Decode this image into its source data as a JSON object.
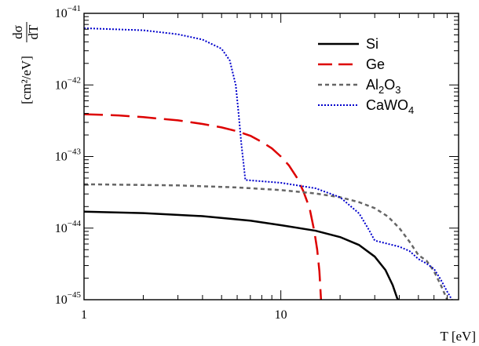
{
  "chart_data": {
    "type": "line",
    "title": "",
    "xlabel": "T [eV]",
    "ylabel": "dσ/dT [cm²/eV]",
    "ylabel_parts": {
      "num": "dσ",
      "den": "dT",
      "unit": "[cm²/eV]"
    },
    "x_scale": "log",
    "y_scale": "log",
    "xlim": [
      1,
      80
    ],
    "ylim": [
      1e-45,
      1e-41
    ],
    "x_tick_labels": [
      {
        "value": 1,
        "label": "1"
      },
      {
        "value": 10,
        "label": "10"
      }
    ],
    "y_tick_labels": [
      {
        "value": 1e-45,
        "base": "10",
        "exp": "−45"
      },
      {
        "value": 1e-44,
        "base": "10",
        "exp": "−44"
      },
      {
        "value": 1e-43,
        "base": "10",
        "exp": "−43"
      },
      {
        "value": 1e-42,
        "base": "10",
        "exp": "−42"
      },
      {
        "value": 1e-41,
        "base": "10",
        "exp": "−41"
      }
    ],
    "grid": false,
    "legend_placement": "top-right",
    "series": [
      {
        "name": "Si",
        "legend_parts": [
          [
            "Si",
            ""
          ]
        ],
        "color": "#000000",
        "style": "solid",
        "points": [
          [
            1,
            1.7e-44
          ],
          [
            2,
            1.62e-44
          ],
          [
            4,
            1.47e-44
          ],
          [
            7,
            1.27e-44
          ],
          [
            10,
            1.1e-44
          ],
          [
            15,
            9.2e-45
          ],
          [
            20,
            7.5e-45
          ],
          [
            25,
            5.8e-45
          ],
          [
            30,
            4e-45
          ],
          [
            34,
            2.6e-45
          ],
          [
            37,
            1.6e-45
          ],
          [
            39,
            1.05e-45
          ],
          [
            39.5,
            1e-45
          ]
        ]
      },
      {
        "name": "Ge",
        "legend_parts": [
          [
            "Ge",
            ""
          ]
        ],
        "color": "#dd0000",
        "style": "dashed",
        "points": [
          [
            1,
            3.9e-43
          ],
          [
            1.5,
            3.75e-43
          ],
          [
            2,
            3.55e-43
          ],
          [
            3,
            3.2e-43
          ],
          [
            4,
            2.85e-43
          ],
          [
            5,
            2.55e-43
          ],
          [
            6,
            2.25e-43
          ],
          [
            7,
            1.95e-43
          ],
          [
            8,
            1.6e-43
          ],
          [
            9,
            1.3e-43
          ],
          [
            10,
            1e-43
          ],
          [
            11,
            7.5e-44
          ],
          [
            12,
            5.2e-44
          ],
          [
            13,
            3.3e-44
          ],
          [
            14,
            1.9e-44
          ],
          [
            14.8,
            9e-45
          ],
          [
            15.3,
            5e-45
          ],
          [
            15.7,
            2.5e-45
          ],
          [
            16,
            1e-45
          ]
        ]
      },
      {
        "name": "Al2O3",
        "legend_parts": [
          [
            "Al",
            ""
          ],
          [
            "2",
            "sub"
          ],
          [
            "O",
            ""
          ],
          [
            "3",
            "sub"
          ]
        ],
        "color": "#666666",
        "style": "dotted",
        "points": [
          [
            1,
            4.1e-44
          ],
          [
            3,
            3.95e-44
          ],
          [
            6,
            3.7e-44
          ],
          [
            10,
            3.4e-44
          ],
          [
            15,
            3.05e-44
          ],
          [
            20,
            2.7e-44
          ],
          [
            25,
            2.3e-44
          ],
          [
            30,
            1.9e-44
          ],
          [
            35,
            1.45e-44
          ],
          [
            40,
            1e-44
          ],
          [
            45,
            6.5e-45
          ],
          [
            50,
            4.2e-45
          ],
          [
            55,
            3.5e-45
          ],
          [
            60,
            2.5e-45
          ],
          [
            65,
            1.6e-45
          ],
          [
            70,
            1e-45
          ]
        ]
      },
      {
        "name": "CaWO4",
        "legend_parts": [
          [
            "CaWO",
            ""
          ],
          [
            "4",
            "sub"
          ]
        ],
        "color": "#0000cc",
        "style": "dotted",
        "points": [
          [
            1,
            6.2e-42
          ],
          [
            2,
            5.8e-42
          ],
          [
            3,
            5.1e-42
          ],
          [
            4,
            4.3e-42
          ],
          [
            5,
            3.2e-42
          ],
          [
            5.5,
            2.2e-42
          ],
          [
            5.9,
            1e-42
          ],
          [
            6.1,
            4e-43
          ],
          [
            6.3,
            1.5e-43
          ],
          [
            6.5,
            7e-44
          ],
          [
            6.6,
            4.7e-44
          ],
          [
            10,
            4.3e-44
          ],
          [
            15,
            3.6e-44
          ],
          [
            20,
            2.7e-44
          ],
          [
            25,
            1.6e-44
          ],
          [
            28,
            9.5e-45
          ],
          [
            30,
            6.7e-45
          ],
          [
            40,
            5.5e-45
          ],
          [
            45,
            4.8e-45
          ],
          [
            50,
            3.7e-45
          ],
          [
            55,
            3.2e-45
          ],
          [
            60,
            2.7e-45
          ],
          [
            65,
            1.9e-45
          ],
          [
            70,
            1.3e-45
          ],
          [
            74,
            1e-45
          ]
        ]
      }
    ]
  }
}
